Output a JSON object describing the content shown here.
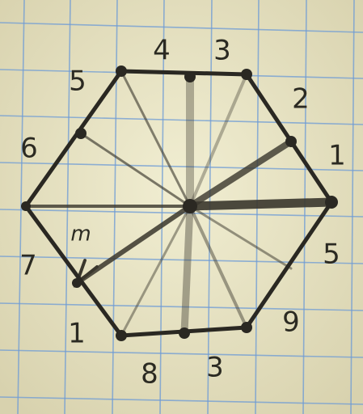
{
  "labels": [
    "4",
    "3",
    "2",
    "1",
    "5",
    "9",
    "3",
    "8",
    "1",
    "7",
    "6",
    "5",
    "m"
  ]
}
